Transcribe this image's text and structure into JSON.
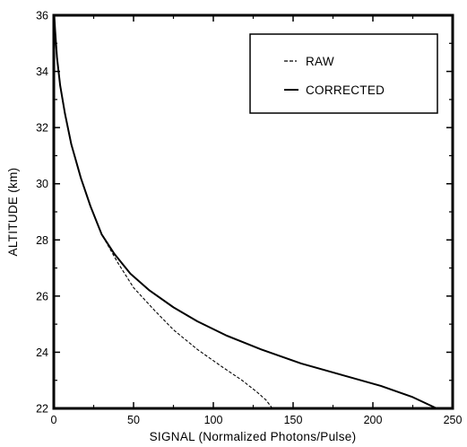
{
  "chart_data": {
    "type": "line",
    "title": "",
    "xlabel": "SIGNAL (Normalized Photons/Pulse)",
    "ylabel": "ALTITUDE (km)",
    "xlim": [
      0,
      250
    ],
    "ylim": [
      22,
      36
    ],
    "x_ticks": [
      0,
      50,
      100,
      150,
      200,
      250
    ],
    "y_ticks": [
      22,
      24,
      26,
      28,
      30,
      32,
      34,
      36
    ],
    "x_tick_labels": [
      "0",
      "50",
      "100",
      "150",
      "200",
      "250"
    ],
    "y_tick_labels": [
      "22",
      "24",
      "26",
      "28",
      "30",
      "32",
      "34",
      "36"
    ],
    "grid": false,
    "legend_position": "top-right",
    "series": [
      {
        "name": "RAW",
        "style": "dashed",
        "color": "#000000",
        "points": [
          [
            137,
            22.0
          ],
          [
            133,
            22.3
          ],
          [
            127,
            22.6
          ],
          [
            118,
            23.0
          ],
          [
            105,
            23.5
          ],
          [
            90,
            24.1
          ],
          [
            75,
            24.8
          ],
          [
            63,
            25.5
          ],
          [
            50,
            26.3
          ],
          [
            40,
            27.2
          ],
          [
            30,
            28.2
          ],
          [
            23,
            29.2
          ],
          [
            17,
            30.2
          ],
          [
            11,
            31.4
          ],
          [
            7,
            32.5
          ],
          [
            4,
            33.5
          ],
          [
            2,
            34.5
          ],
          [
            0.8,
            35.5
          ],
          [
            0.3,
            36.0
          ]
        ]
      },
      {
        "name": "CORRECTED",
        "style": "solid",
        "color": "#000000",
        "points": [
          [
            240,
            22.0
          ],
          [
            225,
            22.4
          ],
          [
            205,
            22.8
          ],
          [
            180,
            23.2
          ],
          [
            155,
            23.6
          ],
          [
            130,
            24.1
          ],
          [
            108,
            24.6
          ],
          [
            90,
            25.1
          ],
          [
            75,
            25.6
          ],
          [
            60,
            26.2
          ],
          [
            48,
            26.8
          ],
          [
            38,
            27.5
          ],
          [
            30,
            28.2
          ],
          [
            23,
            29.2
          ],
          [
            17,
            30.2
          ],
          [
            11,
            31.4
          ],
          [
            7,
            32.5
          ],
          [
            4,
            33.5
          ],
          [
            2,
            34.5
          ],
          [
            0.8,
            35.5
          ],
          [
            0.3,
            36.0
          ]
        ]
      }
    ]
  }
}
